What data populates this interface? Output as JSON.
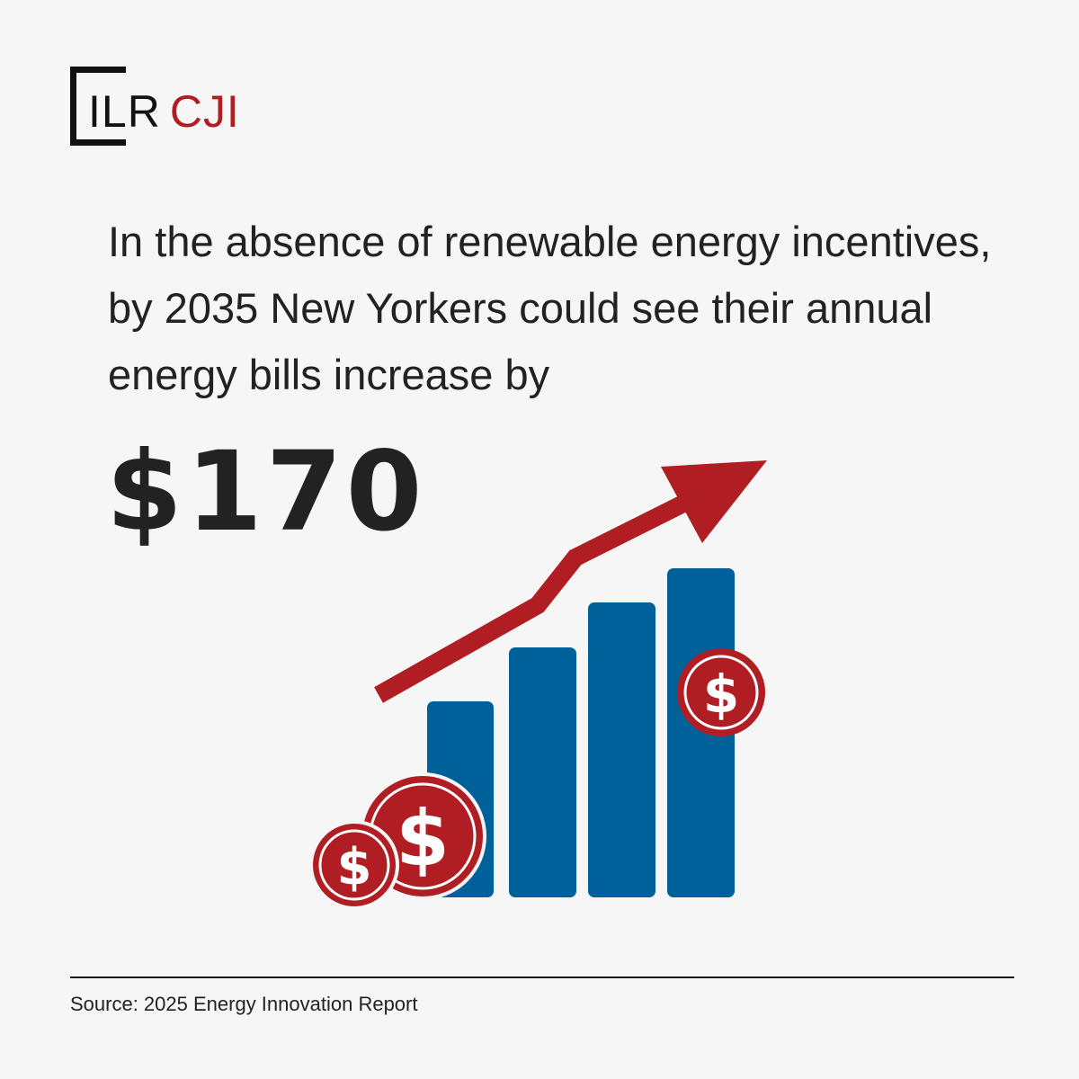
{
  "logo": {
    "primary": "ILR",
    "accent": "CJI"
  },
  "headline": "In the absence of renewable energy incentives, by 2035 New Yorkers could see their annual energy bills increase by",
  "amount": "$170",
  "graphic": {
    "coin_symbol": "$",
    "bar_color": "#00619a",
    "accent_color": "#b01e23"
  },
  "source": "Source: 2025 Energy Innovation Report"
}
